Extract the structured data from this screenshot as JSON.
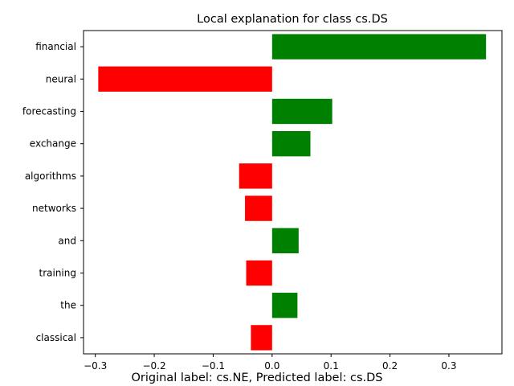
{
  "chart_data": {
    "type": "bar",
    "orientation": "horizontal",
    "title": "Local explanation for class cs.DS",
    "caption": "Original label: cs.NE, Predicted label: cs.DS",
    "xlabel": "",
    "ylabel": "",
    "xlim": [
      -0.32,
      0.39
    ],
    "xticks": [
      -0.3,
      -0.2,
      -0.1,
      0.0,
      0.1,
      0.2,
      0.3
    ],
    "xtick_labels": [
      "−0.3",
      "−0.2",
      "−0.1",
      "0.0",
      "0.1",
      "0.2",
      "0.3"
    ],
    "grid": false,
    "categories": [
      "financial",
      "neural",
      "forecasting",
      "exchange",
      "algorithms",
      "networks",
      "and",
      "training",
      "the",
      "classical"
    ],
    "values": [
      0.363,
      -0.295,
      0.102,
      0.065,
      -0.056,
      -0.046,
      0.045,
      -0.044,
      0.043,
      -0.036
    ],
    "colors": {
      "positive": "#008000",
      "negative": "#ff0000"
    }
  }
}
